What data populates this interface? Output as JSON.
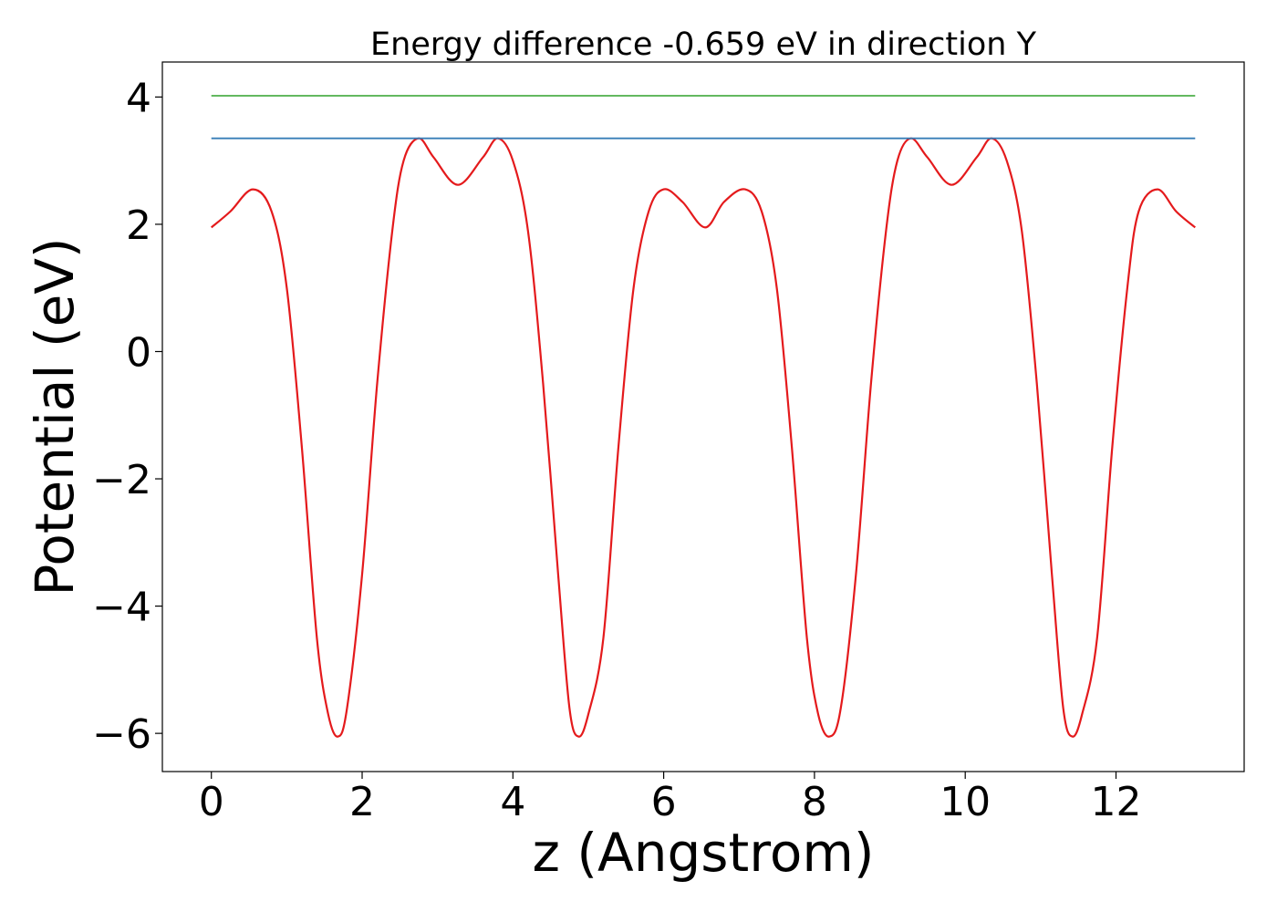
{
  "chart_data": {
    "type": "line",
    "title": "Energy difference -0.659 eV in direction Y",
    "xlabel": "z (Angstrom)",
    "ylabel": "Potential (eV)",
    "xlim": [
      -0.65,
      13.7
    ],
    "ylim": [
      -6.6,
      4.55
    ],
    "xticks": [
      {
        "value": 0,
        "label": "0"
      },
      {
        "value": 2,
        "label": "2"
      },
      {
        "value": 4,
        "label": "4"
      },
      {
        "value": 6,
        "label": "6"
      },
      {
        "value": 8,
        "label": "8"
      },
      {
        "value": 10,
        "label": "10"
      },
      {
        "value": 12,
        "label": "12"
      }
    ],
    "yticks": [
      {
        "value": 4,
        "label": "4"
      },
      {
        "value": 2,
        "label": "2"
      },
      {
        "value": 0,
        "label": "0"
      },
      {
        "value": -2,
        "label": "−2"
      },
      {
        "value": -4,
        "label": "−4"
      },
      {
        "value": -6,
        "label": "−6"
      }
    ],
    "grid": false,
    "series": [
      {
        "color": "#e41a1c",
        "x": [
          0,
          0.25,
          0.55,
          0.8,
          1.0,
          1.2,
          1.4,
          1.55,
          1.68,
          1.8,
          2.0,
          2.2,
          2.4,
          2.55,
          2.75,
          2.95,
          3.27,
          3.6,
          3.8,
          4.0,
          4.2,
          4.4,
          4.6,
          4.75,
          4.87,
          5.0,
          5.2,
          5.4,
          5.6,
          5.8,
          6.0,
          6.25,
          6.55,
          6.8,
          7.08,
          7.3,
          7.5,
          7.7,
          7.9,
          8.05,
          8.2,
          8.35,
          8.55,
          8.75,
          8.95,
          9.1,
          9.28,
          9.5,
          9.82,
          10.15,
          10.35,
          10.55,
          10.75,
          10.95,
          11.15,
          11.3,
          11.42,
          11.55,
          11.75,
          11.95,
          12.15,
          12.3,
          12.55,
          12.8,
          13.05
        ],
        "y": [
          1.95,
          2.2,
          2.55,
          2.2,
          1.0,
          -1.5,
          -4.5,
          -5.7,
          -6.05,
          -5.6,
          -3.5,
          -0.5,
          1.9,
          3.0,
          3.35,
          3.05,
          2.62,
          3.05,
          3.35,
          3.0,
          1.9,
          -0.5,
          -3.5,
          -5.6,
          -6.05,
          -5.7,
          -4.5,
          -1.5,
          1.0,
          2.2,
          2.55,
          2.35,
          1.95,
          2.35,
          2.55,
          2.2,
          1.0,
          -1.5,
          -4.5,
          -5.7,
          -6.05,
          -5.6,
          -3.5,
          -0.5,
          1.9,
          3.0,
          3.35,
          3.05,
          2.62,
          3.05,
          3.35,
          3.0,
          1.9,
          -0.5,
          -3.5,
          -5.6,
          -6.05,
          -5.7,
          -4.5,
          -1.5,
          1.0,
          2.2,
          2.55,
          2.2,
          1.95
        ]
      },
      {
        "color": "#377eb8",
        "x": [
          0,
          13.05
        ],
        "y": [
          3.35,
          3.35
        ]
      },
      {
        "color": "#4daf4a",
        "x": [
          0,
          13.05
        ],
        "y": [
          4.02,
          4.02
        ]
      }
    ]
  }
}
